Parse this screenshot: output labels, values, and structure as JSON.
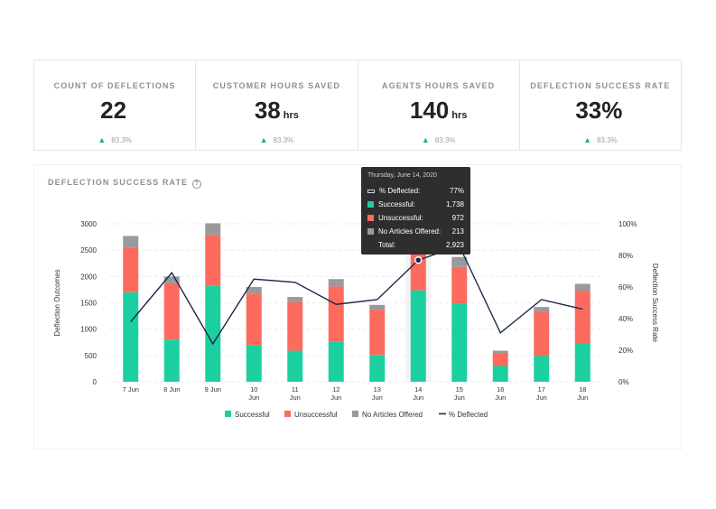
{
  "kpis": [
    {
      "label": "COUNT OF DEFLECTIONS",
      "value": "22",
      "unit": "",
      "change": "83.3%"
    },
    {
      "label": "CUSTOMER HOURS SAVED",
      "value": "38",
      "unit": "hrs",
      "change": "83.3%"
    },
    {
      "label": "AGENTS HOURS SAVED",
      "value": "140",
      "unit": "hrs",
      "change": "83.3%"
    },
    {
      "label": "DEFLECTION SUCCESS RATE",
      "value": "33%",
      "unit": "",
      "change": "83.3%"
    }
  ],
  "colors": {
    "successful": "#1ccfa0",
    "unsuccessful": "#fd6a5e",
    "no_articles": "#9a9a9a",
    "line": "#1b2a4a",
    "up_arrow": "#22b573"
  },
  "tooltip": {
    "date": "Thursday, June 14, 2020",
    "rows": [
      {
        "label": "% Deflected:",
        "value": "77%",
        "type": "line"
      },
      {
        "label": "Successful:",
        "value": "1,738",
        "type": "successful"
      },
      {
        "label": "Unsuccessful:",
        "value": "972",
        "type": "unsuccessful"
      },
      {
        "label": "No Articles Offered:",
        "value": "213",
        "type": "no_articles"
      }
    ],
    "total_label": "Total:",
    "total_value": "2,923"
  },
  "chart_data": {
    "type": "bar",
    "title": "DEFLECTION SUCCESS RATE",
    "ylabel": "Deflection Outcomes",
    "y2label": "Deflection Success Rate",
    "ylim": [
      0,
      3000
    ],
    "y2lim": [
      0,
      100
    ],
    "yticks": [
      0,
      500,
      1000,
      1500,
      2000,
      2500,
      3000
    ],
    "y2ticks": [
      "0%",
      "20%",
      "40%",
      "60%",
      "80%",
      "100%"
    ],
    "categories": [
      [
        "7 Jun"
      ],
      [
        "8 Jun"
      ],
      [
        "9 Jun"
      ],
      [
        "10",
        "Jun"
      ],
      [
        "11",
        "Jun"
      ],
      [
        "12",
        "Jun"
      ],
      [
        "13",
        "Jun"
      ],
      [
        "14",
        "Jun"
      ],
      [
        "15",
        "Jun"
      ],
      [
        "16",
        "Jun"
      ],
      [
        "17",
        "Jun"
      ],
      [
        "18",
        "Jun"
      ]
    ],
    "stacked": true,
    "series": [
      {
        "name": "Successful",
        "values": [
          1700,
          800,
          1830,
          690,
          590,
          760,
          510,
          1738,
          1490,
          300,
          490,
          720
        ]
      },
      {
        "name": "Unsuccessful",
        "values": [
          850,
          1070,
          960,
          980,
          920,
          1050,
          860,
          972,
          690,
          240,
          830,
          1010
        ]
      },
      {
        "name": "No Articles Offered",
        "values": [
          220,
          130,
          220,
          130,
          100,
          140,
          90,
          213,
          190,
          50,
          100,
          130
        ]
      }
    ],
    "line_series": {
      "name": "% Deflected",
      "values": [
        38,
        69,
        24,
        65,
        63,
        49,
        52,
        77,
        86,
        31,
        52,
        46
      ]
    },
    "legend": [
      "Successful",
      "Unsuccessful",
      "No Articles Offered",
      "% Deflected"
    ],
    "legend_position": "bottom",
    "highlight_index": 7,
    "grid": true
  }
}
